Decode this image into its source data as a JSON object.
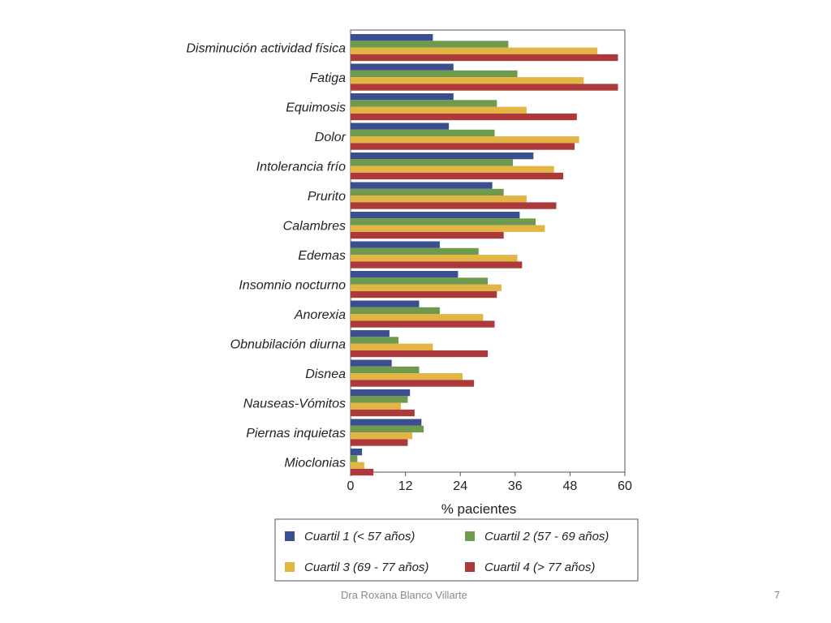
{
  "chart_data": {
    "type": "bar",
    "orientation": "horizontal",
    "xlabel": "% pacientes",
    "xlim": [
      0,
      60
    ],
    "xticks": [
      "0",
      "12",
      "24",
      "36",
      "48",
      "60"
    ],
    "categories": [
      "Disminución actividad física",
      "Fatiga",
      "Equimosis",
      "Dolor",
      "Intolerancia frío",
      "Prurito",
      "Calambres",
      "Edemas",
      "Insomnio nocturno",
      "Anorexia",
      "Obnubilación diurna",
      "Disnea",
      "Nauseas-Vómitos",
      "Piernas inquietas",
      "Mioclonias"
    ],
    "series": [
      {
        "name": "Cuartil 1 (< 57 años)",
        "color": "#3b4f8f",
        "values": [
          18,
          22.5,
          22.5,
          21.5,
          40,
          31,
          37,
          19.5,
          23.5,
          15,
          8.5,
          9,
          13,
          15.5,
          2.5
        ]
      },
      {
        "name": "Cuartil 2 (57 - 69 años)",
        "color": "#6e9a4e",
        "values": [
          34.5,
          36.5,
          32,
          31.5,
          35.5,
          33.5,
          40.5,
          28,
          30,
          19.5,
          10.5,
          15,
          12.5,
          16,
          1.5
        ]
      },
      {
        "name": "Cuartil 3 (69 - 77 años)",
        "color": "#e2b545",
        "values": [
          54,
          51,
          38.5,
          50,
          44.5,
          38.5,
          42.5,
          36.5,
          33,
          29,
          18,
          24.5,
          11,
          13.5,
          3
        ]
      },
      {
        "name": "Cuartil 4 (> 77 años)",
        "color": "#ad3a3a",
        "values": [
          58.5,
          58.5,
          49.5,
          49,
          46.5,
          45,
          33.5,
          37.5,
          32,
          31.5,
          30,
          27,
          14,
          12.5,
          5
        ]
      }
    ],
    "legend_position": "bottom",
    "grid": false
  },
  "footer": {
    "author": "Dra Roxana Blanco Villarte",
    "page": "7"
  }
}
